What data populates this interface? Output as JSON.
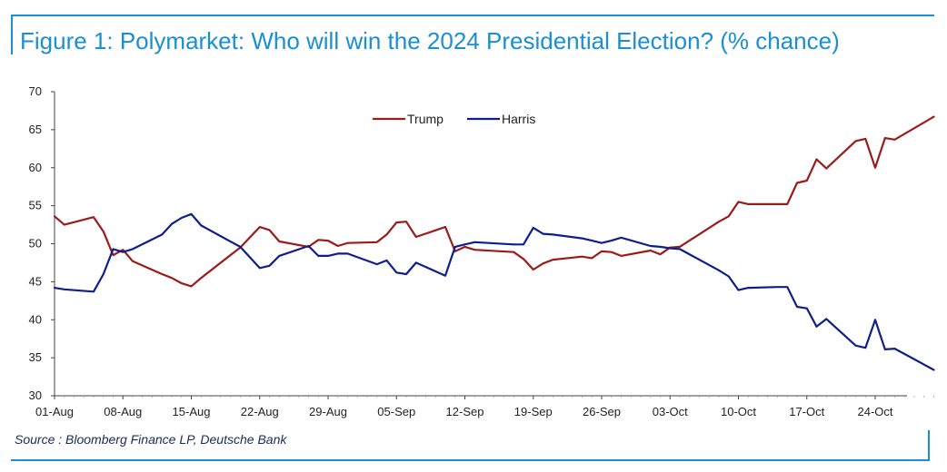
{
  "figure": {
    "title": "Figure 1: Polymarket: Who will win the 2024 Presidential Election? (% chance)",
    "source": "Source : Bloomberg Finance LP, Deutsche Bank",
    "accent_color": "#1a8fd1"
  },
  "chart_data": {
    "type": "line",
    "title": "Figure 1: Polymarket: Who will win the 2024 Presidential Election? (% chance)",
    "xlabel": "",
    "ylabel": "",
    "ylim": [
      30,
      70
    ],
    "yticks": [
      30,
      35,
      40,
      45,
      50,
      55,
      60,
      65,
      70
    ],
    "xlim": [
      "2024-08-01",
      "2024-10-30"
    ],
    "xticks": [
      "01-Aug",
      "08-Aug",
      "15-Aug",
      "22-Aug",
      "29-Aug",
      "05-Sep",
      "12-Sep",
      "19-Sep",
      "26-Sep",
      "03-Oct",
      "10-Oct",
      "17-Oct",
      "24-Oct"
    ],
    "grid": false,
    "legend": "top-center",
    "series": [
      {
        "name": "Trump",
        "color": "#9b1b1b",
        "points": [
          [
            "2024-08-01",
            53.6
          ],
          [
            "2024-08-02",
            52.5
          ],
          [
            "2024-08-05",
            53.5
          ],
          [
            "2024-08-06",
            51.6
          ],
          [
            "2024-08-07",
            48.5
          ],
          [
            "2024-08-08",
            49.2
          ],
          [
            "2024-08-09",
            47.7
          ],
          [
            "2024-08-12",
            46.0
          ],
          [
            "2024-08-13",
            45.5
          ],
          [
            "2024-08-14",
            44.8
          ],
          [
            "2024-08-15",
            44.4
          ],
          [
            "2024-08-16",
            45.5
          ],
          [
            "2024-08-20",
            49.5
          ],
          [
            "2024-08-22",
            52.2
          ],
          [
            "2024-08-23",
            51.8
          ],
          [
            "2024-08-24",
            50.3
          ],
          [
            "2024-08-27",
            49.6
          ],
          [
            "2024-08-28",
            50.5
          ],
          [
            "2024-08-29",
            50.4
          ],
          [
            "2024-08-30",
            49.7
          ],
          [
            "2024-08-31",
            50.1
          ],
          [
            "2024-09-03",
            50.2
          ],
          [
            "2024-09-04",
            51.2
          ],
          [
            "2024-09-05",
            52.8
          ],
          [
            "2024-09-06",
            52.9
          ],
          [
            "2024-09-07",
            50.9
          ],
          [
            "2024-09-10",
            52.2
          ],
          [
            "2024-09-11",
            49.0
          ],
          [
            "2024-09-12",
            49.6
          ],
          [
            "2024-09-13",
            49.2
          ],
          [
            "2024-09-17",
            48.9
          ],
          [
            "2024-09-18",
            48.0
          ],
          [
            "2024-09-19",
            46.6
          ],
          [
            "2024-09-20",
            47.4
          ],
          [
            "2024-09-21",
            47.9
          ],
          [
            "2024-09-24",
            48.3
          ],
          [
            "2024-09-25",
            48.1
          ],
          [
            "2024-09-26",
            49.0
          ],
          [
            "2024-09-27",
            48.9
          ],
          [
            "2024-09-28",
            48.4
          ],
          [
            "2024-10-01",
            49.1
          ],
          [
            "2024-10-02",
            48.6
          ],
          [
            "2024-10-03",
            49.5
          ],
          [
            "2024-10-04",
            49.6
          ],
          [
            "2024-10-08",
            52.9
          ],
          [
            "2024-10-09",
            53.6
          ],
          [
            "2024-10-10",
            55.5
          ],
          [
            "2024-10-11",
            55.2
          ],
          [
            "2024-10-14",
            55.2
          ],
          [
            "2024-10-15",
            55.2
          ],
          [
            "2024-10-16",
            58.0
          ],
          [
            "2024-10-17",
            58.3
          ],
          [
            "2024-10-18",
            61.1
          ],
          [
            "2024-10-19",
            59.9
          ],
          [
            "2024-10-22",
            63.5
          ],
          [
            "2024-10-23",
            63.8
          ],
          [
            "2024-10-24",
            60.0
          ],
          [
            "2024-10-25",
            63.9
          ],
          [
            "2024-10-26",
            63.7
          ],
          [
            "2024-10-30",
            66.7
          ]
        ]
      },
      {
        "name": "Harris",
        "color": "#0e1e8a",
        "points": [
          [
            "2024-08-01",
            44.2
          ],
          [
            "2024-08-02",
            44.0
          ],
          [
            "2024-08-05",
            43.7
          ],
          [
            "2024-08-06",
            46.0
          ],
          [
            "2024-08-07",
            49.3
          ],
          [
            "2024-08-08",
            48.9
          ],
          [
            "2024-08-09",
            49.3
          ],
          [
            "2024-08-12",
            51.2
          ],
          [
            "2024-08-13",
            52.6
          ],
          [
            "2024-08-14",
            53.4
          ],
          [
            "2024-08-15",
            53.9
          ],
          [
            "2024-08-16",
            52.4
          ],
          [
            "2024-08-20",
            49.6
          ],
          [
            "2024-08-22",
            46.8
          ],
          [
            "2024-08-23",
            47.1
          ],
          [
            "2024-08-24",
            48.4
          ],
          [
            "2024-08-27",
            49.7
          ],
          [
            "2024-08-28",
            48.4
          ],
          [
            "2024-08-29",
            48.4
          ],
          [
            "2024-08-30",
            48.7
          ],
          [
            "2024-08-31",
            48.7
          ],
          [
            "2024-09-03",
            47.3
          ],
          [
            "2024-09-04",
            47.8
          ],
          [
            "2024-09-05",
            46.2
          ],
          [
            "2024-09-06",
            46.0
          ],
          [
            "2024-09-07",
            47.5
          ],
          [
            "2024-09-10",
            45.8
          ],
          [
            "2024-09-11",
            49.6
          ],
          [
            "2024-09-12",
            49.9
          ],
          [
            "2024-09-13",
            50.2
          ],
          [
            "2024-09-17",
            49.9
          ],
          [
            "2024-09-18",
            49.9
          ],
          [
            "2024-09-19",
            52.1
          ],
          [
            "2024-09-20",
            51.3
          ],
          [
            "2024-09-21",
            51.2
          ],
          [
            "2024-09-24",
            50.7
          ],
          [
            "2024-09-25",
            50.4
          ],
          [
            "2024-09-26",
            50.1
          ],
          [
            "2024-09-27",
            50.4
          ],
          [
            "2024-09-28",
            50.8
          ],
          [
            "2024-10-01",
            49.7
          ],
          [
            "2024-10-02",
            49.6
          ],
          [
            "2024-10-03",
            49.4
          ],
          [
            "2024-10-04",
            49.3
          ],
          [
            "2024-10-08",
            46.5
          ],
          [
            "2024-10-09",
            45.7
          ],
          [
            "2024-10-10",
            43.9
          ],
          [
            "2024-10-11",
            44.2
          ],
          [
            "2024-10-14",
            44.3
          ],
          [
            "2024-10-15",
            44.3
          ],
          [
            "2024-10-16",
            41.7
          ],
          [
            "2024-10-17",
            41.5
          ],
          [
            "2024-10-18",
            39.1
          ],
          [
            "2024-10-19",
            40.1
          ],
          [
            "2024-10-22",
            36.6
          ],
          [
            "2024-10-23",
            36.3
          ],
          [
            "2024-10-24",
            40.0
          ],
          [
            "2024-10-25",
            36.1
          ],
          [
            "2024-10-26",
            36.2
          ],
          [
            "2024-10-30",
            33.4
          ]
        ]
      }
    ]
  }
}
